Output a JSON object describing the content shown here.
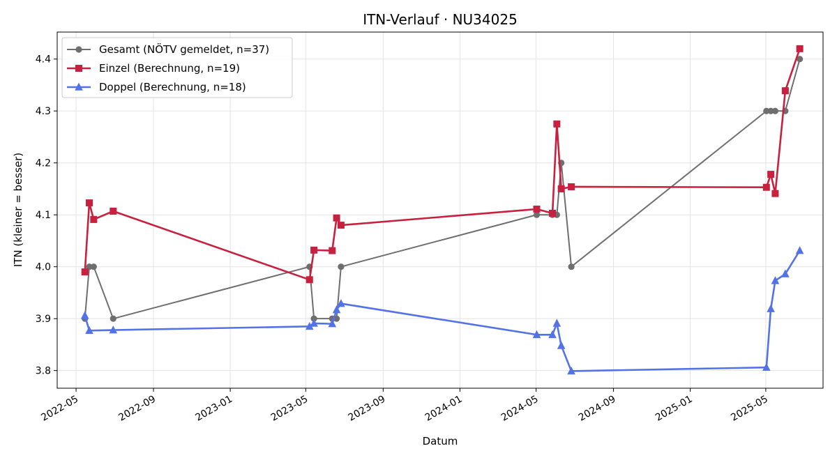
{
  "chart_data": {
    "type": "line",
    "title": "ITN-Verlauf · NU34025",
    "xlabel": "Datum",
    "ylabel": "ITN  (kleiner = besser)",
    "xlim": [
      "2022-04-01",
      "2025-07-31"
    ],
    "ylim": [
      3.766,
      4.452
    ],
    "xticks": [
      "2022-05",
      "2022-09",
      "2023-01",
      "2023-05",
      "2023-09",
      "2024-01",
      "2024-05",
      "2024-09",
      "2025-01",
      "2025-05"
    ],
    "yticks": [
      3.8,
      3.9,
      4.0,
      4.1,
      4.2,
      4.3,
      4.4
    ],
    "grid": true,
    "legend_position": "top-left",
    "series": [
      {
        "name": "Gesamt (NÖTV gemeldet, n=37)",
        "color": "#6e6e6e",
        "marker": "circle",
        "points": [
          {
            "x": "2022-05-15",
            "y": 3.9
          },
          {
            "x": "2022-05-22",
            "y": 4.0
          },
          {
            "x": "2022-05-29",
            "y": 4.0
          },
          {
            "x": "2022-06-29",
            "y": 3.9
          },
          {
            "x": "2023-05-07",
            "y": 4.0
          },
          {
            "x": "2023-05-14",
            "y": 3.9
          },
          {
            "x": "2023-06-12",
            "y": 3.9
          },
          {
            "x": "2023-06-19",
            "y": 3.9
          },
          {
            "x": "2023-06-26",
            "y": 4.0
          },
          {
            "x": "2024-05-02",
            "y": 4.1
          },
          {
            "x": "2024-05-27",
            "y": 4.1
          },
          {
            "x": "2024-06-03",
            "y": 4.1
          },
          {
            "x": "2024-06-10",
            "y": 4.2
          },
          {
            "x": "2024-06-26",
            "y": 4.0
          },
          {
            "x": "2025-05-02",
            "y": 4.3
          },
          {
            "x": "2025-05-09",
            "y": 4.3
          },
          {
            "x": "2025-05-16",
            "y": 4.3
          },
          {
            "x": "2025-06-01",
            "y": 4.3
          },
          {
            "x": "2025-06-24",
            "y": 4.4
          }
        ]
      },
      {
        "name": "Einzel (Berechnung, n=19)",
        "color": "#c8203f",
        "marker": "square",
        "points": [
          {
            "x": "2022-05-15",
            "y": 3.99
          },
          {
            "x": "2022-05-22",
            "y": 4.123
          },
          {
            "x": "2022-05-29",
            "y": 4.091
          },
          {
            "x": "2022-06-29",
            "y": 4.107
          },
          {
            "x": "2023-05-07",
            "y": 3.975
          },
          {
            "x": "2023-05-14",
            "y": 4.032
          },
          {
            "x": "2023-06-12",
            "y": 4.031
          },
          {
            "x": "2023-06-19",
            "y": 4.094
          },
          {
            "x": "2023-06-26",
            "y": 4.08
          },
          {
            "x": "2024-05-02",
            "y": 4.111
          },
          {
            "x": "2024-05-27",
            "y": 4.103
          },
          {
            "x": "2024-06-03",
            "y": 4.275
          },
          {
            "x": "2024-06-10",
            "y": 4.15
          },
          {
            "x": "2024-06-26",
            "y": 4.154
          },
          {
            "x": "2025-05-02",
            "y": 4.153
          },
          {
            "x": "2025-05-09",
            "y": 4.178
          },
          {
            "x": "2025-05-16",
            "y": 4.141
          },
          {
            "x": "2025-06-01",
            "y": 4.339
          },
          {
            "x": "2025-06-24",
            "y": 4.42
          }
        ]
      },
      {
        "name": "Doppel (Berechnung, n=18)",
        "color": "#5472e8",
        "marker": "triangle",
        "points": [
          {
            "x": "2022-05-15",
            "y": 3.906
          },
          {
            "x": "2022-05-22",
            "y": 3.877
          },
          {
            "x": "2022-06-29",
            "y": 3.878
          },
          {
            "x": "2023-05-07",
            "y": 3.885
          },
          {
            "x": "2023-05-14",
            "y": 3.891
          },
          {
            "x": "2023-06-12",
            "y": 3.89
          },
          {
            "x": "2023-06-19",
            "y": 3.917
          },
          {
            "x": "2023-06-26",
            "y": 3.929
          },
          {
            "x": "2024-05-02",
            "y": 3.869
          },
          {
            "x": "2024-05-27",
            "y": 3.869
          },
          {
            "x": "2024-06-03",
            "y": 3.891
          },
          {
            "x": "2024-06-10",
            "y": 3.848
          },
          {
            "x": "2024-06-26",
            "y": 3.799
          },
          {
            "x": "2025-05-02",
            "y": 3.806
          },
          {
            "x": "2025-05-09",
            "y": 3.919
          },
          {
            "x": "2025-05-16",
            "y": 3.973
          },
          {
            "x": "2025-06-01",
            "y": 3.986
          },
          {
            "x": "2025-06-24",
            "y": 4.031
          }
        ]
      }
    ]
  }
}
